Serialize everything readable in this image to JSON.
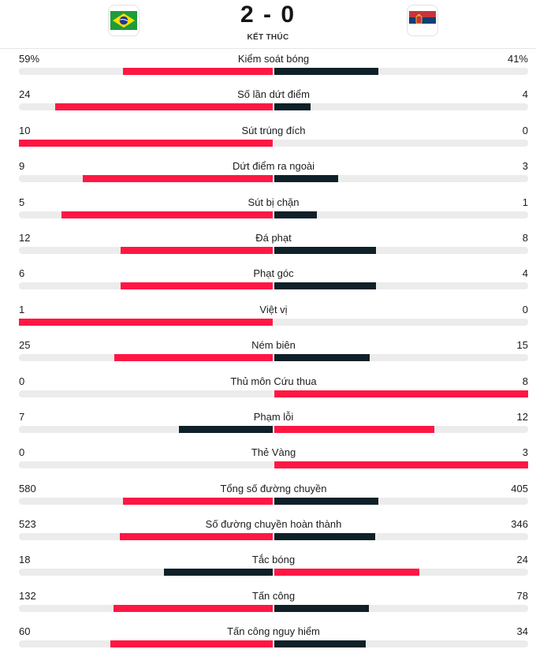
{
  "match": {
    "home_team": {
      "flag_icon": "brazil-flag-icon"
    },
    "away_team": {
      "flag_icon": "serbia-flag-icon"
    },
    "score": "2 - 0",
    "status": "KẾT THÚC"
  },
  "colors": {
    "leader": "#ff1744",
    "trailer": "#0f2028",
    "track": "#ececec"
  },
  "stats": [
    {
      "label": "Kiểm soát bóng",
      "home": "59%",
      "away": "41%"
    },
    {
      "label": "Số lần dứt điểm",
      "home": "24",
      "away": "4"
    },
    {
      "label": "Sút trúng đích",
      "home": "10",
      "away": "0"
    },
    {
      "label": "Dứt điểm ra ngoài",
      "home": "9",
      "away": "3"
    },
    {
      "label": "Sút bị chặn",
      "home": "5",
      "away": "1"
    },
    {
      "label": "Đá phạt",
      "home": "12",
      "away": "8"
    },
    {
      "label": "Phạt góc",
      "home": "6",
      "away": "4"
    },
    {
      "label": "Việt vị",
      "home": "1",
      "away": "0"
    },
    {
      "label": "Ném biên",
      "home": "25",
      "away": "15"
    },
    {
      "label": "Thủ môn Cứu thua",
      "home": "0",
      "away": "8"
    },
    {
      "label": "Phạm lỗi",
      "home": "7",
      "away": "12"
    },
    {
      "label": "Thẻ Vàng",
      "home": "0",
      "away": "3"
    },
    {
      "label": "Tổng số đường chuyền",
      "home": "580",
      "away": "405"
    },
    {
      "label": "Số đường chuyền hoàn thành",
      "home": "523",
      "away": "346"
    },
    {
      "label": "Tắc bóng",
      "home": "18",
      "away": "24"
    },
    {
      "label": "Tấn công",
      "home": "132",
      "away": "78"
    },
    {
      "label": "Tấn công nguy hiểm",
      "home": "60",
      "away": "34"
    }
  ]
}
